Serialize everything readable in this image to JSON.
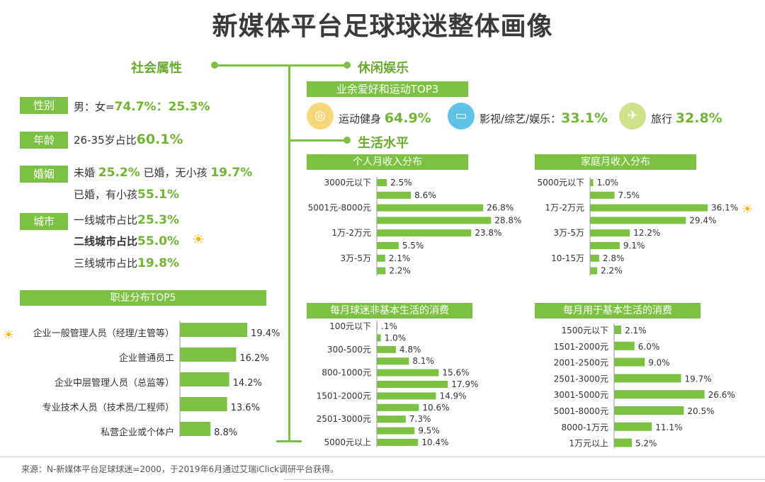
{
  "title": "新媒体平台足球球迷整体画像",
  "social": {
    "heading": "社会属性",
    "gender": {
      "tag": "性别",
      "label": "男：女=",
      "value": "74.7%：25.3%"
    },
    "age": {
      "tag": "年龄",
      "label": "26-35岁占比",
      "value": "60.1%"
    },
    "marriage": {
      "tag": "婚姻",
      "l1_label": "未婚 ",
      "l1_value": "25.2%",
      "l2_label": " 已婚，无小孩 ",
      "l2_value": "19.7%",
      "l3_label": "已婚，有小孩",
      "l3_value": "55.1%"
    },
    "city": {
      "tag": "城市",
      "c1_label": "一线城市占比",
      "c1_value": "25.3%",
      "c2_label": "二线城市占比",
      "c2_value": "55.0%",
      "c3_label": "三线城市占比",
      "c3_value": "19.8%"
    }
  },
  "leisure": {
    "heading": "休闲娱乐",
    "top3_header": "业余爱好和运动TOP3",
    "items": [
      {
        "label": "运动健身 ",
        "value": "64.9%",
        "icon": "fitness-icon",
        "color": "#f5d77a"
      },
      {
        "label": "影视/综艺/娱乐：",
        "value": "33.1%",
        "icon": "tv-icon",
        "color": "#5fc3e8"
      },
      {
        "label": "旅行 ",
        "value": "32.8%",
        "icon": "travel-icon",
        "color": "#cfe28a"
      }
    ]
  },
  "living": {
    "heading": "生活水平"
  },
  "source": "来源：N-新媒体平台足球球迷=2000，于2019年6月通过艾瑞iClick调研平台获得。",
  "colors": {
    "accent": "#7dc142",
    "bar": "#7dc142",
    "sun": "#f5b800"
  },
  "chart_data": [
    {
      "type": "bar",
      "title": "职业分布TOP5",
      "orientation": "horizontal",
      "categories": [
        "企业一般管理人员（经理/主管等）",
        "企业普通员工",
        "企业中层管理人员（总监等）",
        "专业技术人员（技术员/工程师）",
        "私营企业或个体户"
      ],
      "values": [
        19.4,
        16.2,
        14.2,
        13.6,
        8.8
      ],
      "value_labels": [
        "19.4%",
        "16.2%",
        "14.2%",
        "13.6%",
        "8.8%"
      ],
      "highlight_index": 0
    },
    {
      "type": "bar",
      "title": "个人月收入分布",
      "orientation": "horizontal",
      "categories": [
        "3000元以下",
        "",
        "5001元-8000元",
        "",
        "1万-2万元",
        "",
        "3万-5万",
        ""
      ],
      "values": [
        2.5,
        8.6,
        26.8,
        28.8,
        23.8,
        5.5,
        2.1,
        2.2
      ],
      "value_labels": [
        "2.5%",
        "8.6%",
        "26.8%",
        "28.8%",
        "23.8%",
        "5.5%",
        "2.1%",
        "2.2%"
      ]
    },
    {
      "type": "bar",
      "title": "家庭月收入分布",
      "orientation": "horizontal",
      "categories": [
        "5000元以下",
        "",
        "1万-2万元",
        "",
        "3万-5万",
        "",
        "10-15万",
        ""
      ],
      "values": [
        1.0,
        7.5,
        36.1,
        29.4,
        12.2,
        9.1,
        2.8,
        2.2
      ],
      "value_labels": [
        "1.0%",
        "7.5%",
        "36.1%",
        "29.4%",
        "12.2%",
        "9.1%",
        "2.8%",
        "2.2%"
      ],
      "highlight_index": 2
    },
    {
      "type": "bar",
      "title": "每月球迷非基本生活的消费",
      "orientation": "horizontal",
      "categories": [
        "100元以下",
        "",
        "300-500元",
        "",
        "800-1000元",
        "",
        "1501-2000元",
        "",
        "2501-3000元",
        "",
        "5000元以上"
      ],
      "values": [
        0.1,
        1.0,
        4.8,
        8.1,
        15.6,
        17.9,
        14.9,
        10.6,
        7.3,
        9.5,
        10.4
      ],
      "value_labels": [
        ".1%",
        "1.0%",
        "4.8%",
        "8.1%",
        "15.6%",
        "17.9%",
        "14.9%",
        "10.6%",
        "7.3%",
        "9.5%",
        "10.4%"
      ]
    },
    {
      "type": "bar",
      "title": "每月用于基本生活的消费",
      "orientation": "horizontal",
      "categories": [
        "1500元以下",
        "1501-2000元",
        "2001-2500元",
        "2501-3000元",
        "3001-5000元",
        "5001-8000元",
        "8000-1万元",
        "1万元以上"
      ],
      "values": [
        2.1,
        6.0,
        9.0,
        19.7,
        26.6,
        20.5,
        11.1,
        5.2
      ],
      "value_labels": [
        "2.1%",
        "6.0%",
        "9.0%",
        "19.7%",
        "26.6%",
        "20.5%",
        "11.1%",
        "5.2%"
      ]
    }
  ]
}
